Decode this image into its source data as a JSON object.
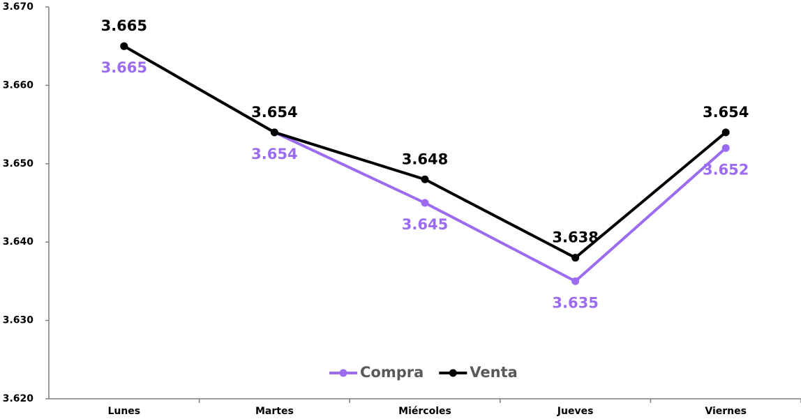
{
  "chart_data": {
    "type": "line",
    "categories": [
      "Lunes",
      "Martes",
      "Miércoles",
      "Jueves",
      "Viernes"
    ],
    "series": [
      {
        "name": "Compra",
        "color": "#9b6cf0",
        "values": [
          3.665,
          3.654,
          3.645,
          3.635,
          3.652
        ]
      },
      {
        "name": "Venta",
        "color": "#000000",
        "values": [
          3.665,
          3.654,
          3.648,
          3.638,
          3.654
        ]
      }
    ],
    "ylim": [
      3.62,
      3.67
    ],
    "yticks": [
      {
        "value": 3.62,
        "label": "3.620"
      },
      {
        "value": 3.63,
        "label": "3.630"
      },
      {
        "value": 3.64,
        "label": "3.640"
      },
      {
        "value": 3.65,
        "label": "3.650"
      },
      {
        "value": 3.66,
        "label": "3.660"
      },
      {
        "value": 3.67,
        "label": "3.670"
      }
    ],
    "grid": false,
    "legend": "bottom"
  }
}
